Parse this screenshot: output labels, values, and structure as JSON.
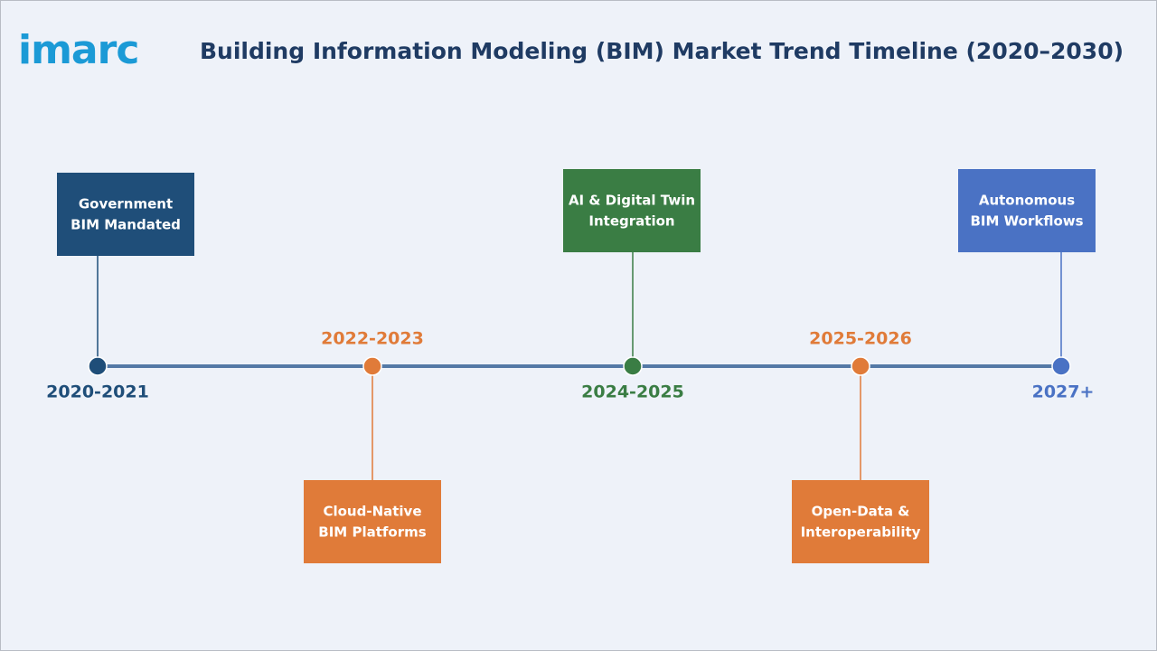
{
  "header": {
    "logo": "imarc",
    "title": "Building Information Modeling (BIM) Market Trend Timeline (2020–2030)"
  },
  "milestones": [
    {
      "year": "2020-2021",
      "label": [
        "Government",
        "BIM Mandated"
      ],
      "color": "#1f4e79"
    },
    {
      "year": "2022-2023",
      "label": [
        "Cloud-Native",
        "BIM Platforms"
      ],
      "color": "#e07b39"
    },
    {
      "year": "2024-2025",
      "label": [
        "AI & Digital Twin",
        "Integration"
      ],
      "color": "#3a7d44"
    },
    {
      "year": "2025-2026",
      "label": [
        "Open-Data &",
        "Interoperability"
      ],
      "color": "#e07b39"
    },
    {
      "year": "2027+",
      "label": [
        "Autonomous",
        "BIM Workflows"
      ],
      "color": "#4a72c4"
    }
  ]
}
